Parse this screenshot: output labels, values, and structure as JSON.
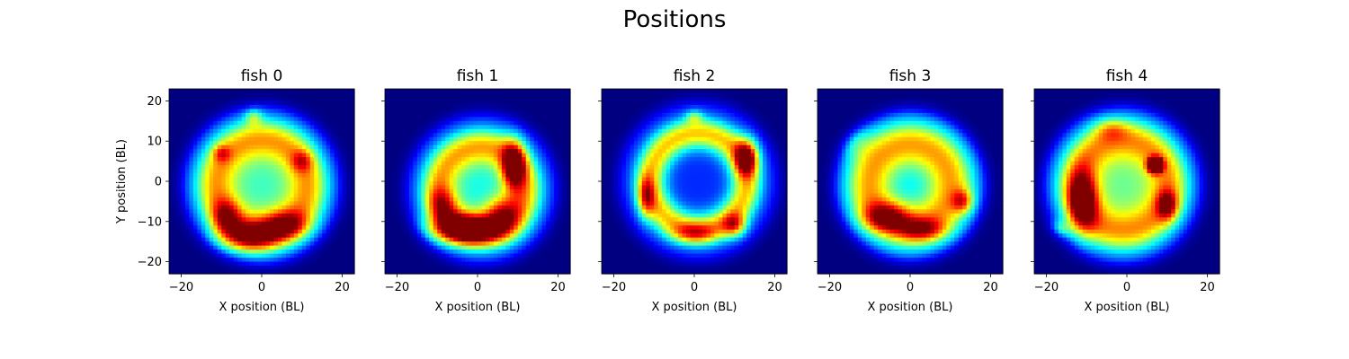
{
  "figure": {
    "title": "Positions"
  },
  "chart_data": {
    "type": "heatmap",
    "title": "Positions",
    "colormap": "jet",
    "xlim": [
      -23,
      23
    ],
    "ylim": [
      -23,
      23
    ],
    "xticks": [
      -20,
      0,
      20
    ],
    "yticks": [
      20,
      10,
      0,
      -10,
      -20
    ],
    "xtick_labels": [
      "−20",
      "0",
      "20"
    ],
    "ytick_labels": [
      "20",
      "10",
      "0",
      "−10",
      "−20"
    ],
    "xlabel": "X position (BL)",
    "ylabel": "Y position (BL)",
    "panels": [
      {
        "title": "fish 0",
        "description": "density ring centered near origin, strongest along bottom arc",
        "ring": {
          "cx": 0,
          "cy": -1,
          "r": 12,
          "width": 5
        },
        "blobs": [
          {
            "x": -3,
            "y": -14,
            "sx": 5,
            "sy": 2.5,
            "a": 0.25
          },
          {
            "x": 6,
            "y": -11,
            "sx": 4,
            "sy": 2.5,
            "a": 0.2
          },
          {
            "x": -9,
            "y": -9,
            "sx": 2.5,
            "sy": 3,
            "a": 0.18
          },
          {
            "x": -2,
            "y": 16,
            "sx": 1.5,
            "sy": 1.5,
            "a": 0.12
          },
          {
            "x": -10,
            "y": 7,
            "sx": 1.5,
            "sy": 1.5,
            "a": 0.12
          },
          {
            "x": 10,
            "y": 5,
            "sx": 1.8,
            "sy": 1.8,
            "a": 0.12
          }
        ],
        "center_level": 0.35
      },
      {
        "title": "fish 1",
        "description": "ring with high density along bottom-left arc and right side",
        "ring": {
          "cx": 1,
          "cy": -2,
          "r": 11,
          "width": 4.5
        },
        "blobs": [
          {
            "x": -3,
            "y": -12,
            "sx": 6,
            "sy": 2.5,
            "a": 0.38
          },
          {
            "x": 9,
            "y": 4,
            "sx": 2,
            "sy": 4,
            "a": 0.32
          },
          {
            "x": 6,
            "y": -8,
            "sx": 3,
            "sy": 3,
            "a": 0.18
          },
          {
            "x": -9,
            "y": -6,
            "sx": 2.5,
            "sy": 3,
            "a": 0.15
          }
        ],
        "center_level": 0.3
      },
      {
        "title": "fish 2",
        "description": "clear ring with empty center, hotspots on right and lower sides",
        "ring": {
          "cx": 1,
          "cy": 0,
          "r": 12,
          "width": 4
        },
        "blobs": [
          {
            "x": 13,
            "y": 6,
            "sx": 2,
            "sy": 3,
            "a": 0.32
          },
          {
            "x": -12,
            "y": -4,
            "sx": 1.5,
            "sy": 3.5,
            "a": 0.2
          },
          {
            "x": 0,
            "y": -13,
            "sx": 4,
            "sy": 1.8,
            "a": 0.15
          },
          {
            "x": 10,
            "y": -11,
            "sx": 2,
            "sy": 2,
            "a": 0.2
          },
          {
            "x": 0,
            "y": 16,
            "sx": 1.5,
            "sy": 1.2,
            "a": 0.12
          }
        ],
        "center_level": 0.05
      },
      {
        "title": "fish 3",
        "description": "broad ring with moderate density, stronger lower-left arc",
        "ring": {
          "cx": 0,
          "cy": -1,
          "r": 11,
          "width": 5.5
        },
        "blobs": [
          {
            "x": -6,
            "y": -9,
            "sx": 4,
            "sy": 2.5,
            "a": 0.22
          },
          {
            "x": 3,
            "y": -12,
            "sx": 4,
            "sy": 2,
            "a": 0.18
          },
          {
            "x": 13,
            "y": -5,
            "sx": 1.8,
            "sy": 2,
            "a": 0.18
          },
          {
            "x": -14,
            "y": 10,
            "sx": 3,
            "sy": 3,
            "a": 0.08
          }
        ],
        "center_level": 0.28
      },
      {
        "title": "fish 4",
        "description": "irregular ring with strong hotspot upper-right and left-side arc",
        "ring": {
          "cx": -1,
          "cy": -1,
          "r": 12,
          "width": 5
        },
        "blobs": [
          {
            "x": 7,
            "y": 4,
            "sx": 1.2,
            "sy": 1.2,
            "a": 0.6
          },
          {
            "x": -11,
            "y": -5,
            "sx": 2.5,
            "sy": 5,
            "a": 0.3
          },
          {
            "x": 10,
            "y": -6,
            "sx": 1.8,
            "sy": 2.5,
            "a": 0.22
          },
          {
            "x": -17,
            "y": -12,
            "sx": 2,
            "sy": 1.5,
            "a": 0.12
          },
          {
            "x": -4,
            "y": 13,
            "sx": 3,
            "sy": 2,
            "a": 0.1
          }
        ],
        "center_level": 0.4
      }
    ]
  }
}
